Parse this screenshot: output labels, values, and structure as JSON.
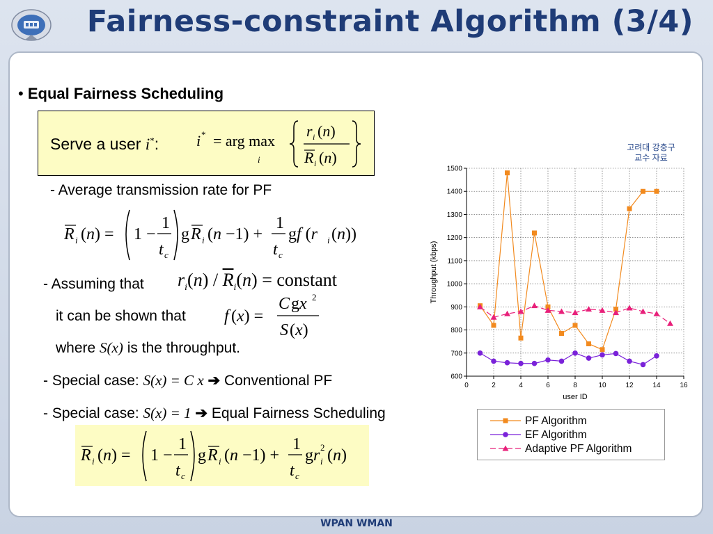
{
  "title": "Fairness-constraint Algorithm (3/4)",
  "footer": "WPAN WMAN",
  "heading": {
    "bullet": "•",
    "label": "Equal Fairness Scheduling"
  },
  "box1": {
    "prefix": "Serve a user",
    "var": "i",
    "sup": "*",
    "colon": ":"
  },
  "lines": {
    "avg_rate": "- Average transmission rate for PF",
    "assuming": "- Assuming that",
    "constant": "constant",
    "shown": "it can be shown that",
    "where_a": "where",
    "where_sx": "S(x)",
    "where_b": "is the throughput.",
    "special1_a": "-  Special case:",
    "special1_b": "S(x) = C x",
    "special1_arrow": "➔",
    "special1_c": "Conventional PF",
    "special2_a": "-  Special case:",
    "special2_b": "S(x) = 1",
    "special2_arrow": "➔",
    "special2_c": "Equal Fairness Scheduling"
  },
  "note": {
    "line1": "고려대 강충구",
    "line2": "교수 자료"
  },
  "chart_data": {
    "type": "line",
    "xlabel": "user ID",
    "ylabel": "Throughput (kbps)",
    "xlim": [
      0,
      16
    ],
    "ylim": [
      600,
      1500
    ],
    "xticks": [
      0,
      2,
      4,
      6,
      8,
      10,
      12,
      14,
      16
    ],
    "yticks": [
      600,
      700,
      800,
      900,
      1000,
      1100,
      1200,
      1300,
      1400,
      1500
    ],
    "grid": true,
    "legend_position": "below",
    "series": [
      {
        "name": "PF Algorithm",
        "color": "#f28a1e",
        "marker": "square",
        "x": [
          1,
          2,
          3,
          4,
          5,
          6,
          7,
          8,
          9,
          10,
          11,
          12,
          13,
          14
        ],
        "y": [
          905,
          820,
          1480,
          765,
          1220,
          900,
          785,
          820,
          740,
          715,
          890,
          1325,
          1400,
          1400
        ]
      },
      {
        "name": "EF Algorithm",
        "color": "#7a22d9",
        "marker": "circle",
        "x": [
          1,
          2,
          3,
          4,
          5,
          6,
          7,
          8,
          9,
          10,
          11,
          12,
          13,
          14
        ],
        "y": [
          700,
          665,
          658,
          655,
          655,
          670,
          665,
          700,
          678,
          692,
          698,
          665,
          650,
          688
        ]
      },
      {
        "name": "Adaptive PF Algorithm",
        "color": "#e8207a",
        "marker": "triangle",
        "x": [
          1,
          2,
          3,
          4,
          5,
          6,
          7,
          8,
          9,
          10,
          11,
          12,
          13,
          14,
          15
        ],
        "y": [
          900,
          855,
          870,
          880,
          905,
          885,
          880,
          875,
          890,
          885,
          875,
          895,
          880,
          870,
          828
        ]
      }
    ]
  }
}
